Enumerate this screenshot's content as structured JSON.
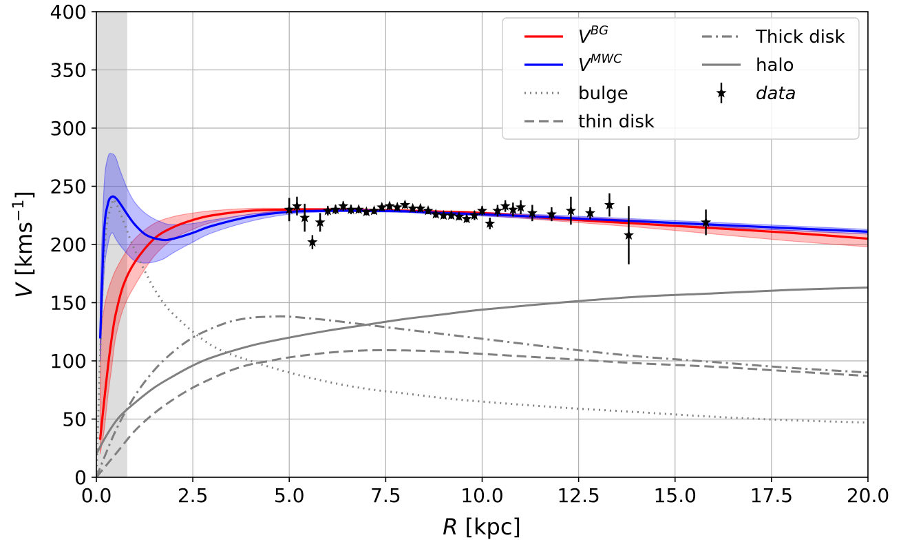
{
  "chart_data": {
    "type": "line",
    "xlabel": "R [kpc]",
    "ylabel": "V [kms−1]",
    "xlim": [
      0,
      20
    ],
    "ylim": [
      0,
      400
    ],
    "xticks": [
      "0.0",
      "2.5",
      "5.0",
      "7.5",
      "10.0",
      "12.5",
      "15.0",
      "17.5",
      "20.0"
    ],
    "yticks": [
      "0",
      "50",
      "100",
      "150",
      "200",
      "250",
      "300",
      "350",
      "400"
    ],
    "grid": true,
    "legend_position": "top-right",
    "shaded_region": {
      "x0": 0,
      "x1": 0.8,
      "color": "#dddddd"
    },
    "series": [
      {
        "key": "vbg",
        "name": "V",
        "name_sup": "BG",
        "color": "#ff0000",
        "style": "solid",
        "x": [
          0.1,
          0.2,
          0.3,
          0.4,
          0.5,
          0.7,
          1.0,
          1.5,
          2.0,
          2.5,
          3.0,
          4.0,
          5.0,
          6.0,
          7.0,
          8.0,
          9.0,
          10.0,
          12.0,
          14.0,
          16.0,
          18.0,
          20.0
        ],
        "y": [
          33,
          65,
          95,
          120,
          140,
          165,
          185,
          205,
          215,
          221,
          225,
          229,
          230,
          230,
          229.5,
          229,
          228,
          227,
          222,
          218,
          214,
          210,
          205
        ],
        "band_upper": [
          120,
          145,
          160,
          170,
          178,
          190,
          205,
          218,
          224,
          227,
          229,
          231,
          231,
          231,
          230.5,
          230,
          229,
          228,
          224,
          221,
          216,
          212,
          209
        ],
        "band_lower": [
          20,
          40,
          70,
          95,
          120,
          145,
          165,
          190,
          205,
          213,
          219,
          226,
          228,
          228.5,
          228.5,
          228,
          226,
          225,
          220,
          215,
          209,
          203,
          198
        ]
      },
      {
        "key": "vmwc",
        "name": "V",
        "name_sup": "MWC",
        "color": "#0000ff",
        "style": "solid",
        "x": [
          0.1,
          0.2,
          0.3,
          0.4,
          0.5,
          0.6,
          0.8,
          1.0,
          1.3,
          1.7,
          2.0,
          2.5,
          3.0,
          4.0,
          5.0,
          6.0,
          7.0,
          8.0,
          9.0,
          10.0,
          12.0,
          14.0,
          16.0,
          18.0,
          20.0
        ],
        "y": [
          120,
          210,
          235,
          241,
          240,
          236,
          226,
          217,
          208,
          204,
          205,
          210,
          216,
          224,
          228,
          229,
          229,
          228.5,
          227,
          226,
          223,
          220,
          217,
          214,
          211
        ],
        "band_upper": [
          160,
          250,
          275,
          278,
          275,
          265,
          248,
          236,
          226,
          219,
          217,
          218,
          221,
          226,
          229.5,
          230,
          230,
          229.5,
          228.5,
          227.5,
          225,
          222,
          219,
          216,
          213
        ],
        "band_lower": [
          100,
          175,
          200,
          210,
          205,
          200,
          192,
          186,
          184,
          187,
          193,
          202,
          210,
          220,
          226,
          228,
          228,
          227.5,
          225.5,
          224.5,
          221,
          218,
          215,
          212,
          209
        ]
      },
      {
        "key": "bulge",
        "name": "bulge",
        "color": "#808080",
        "style": "dotted",
        "x": [
          0.0,
          0.2,
          0.4,
          0.5,
          0.7,
          1.0,
          1.5,
          2.0,
          3.0,
          4.0,
          5.0,
          6.0,
          7.0,
          8.0,
          9.0,
          10.0,
          12.0,
          14.0,
          16.0,
          18.0,
          20.0
        ],
        "y": [
          0,
          190,
          234,
          236,
          220,
          195,
          162,
          140,
          113,
          100,
          90,
          82,
          76,
          72,
          68,
          65,
          60,
          56,
          52,
          49,
          47
        ]
      },
      {
        "key": "thin",
        "name": "thin disk",
        "color": "#808080",
        "style": "dashed",
        "x": [
          0.0,
          0.5,
          1.0,
          1.5,
          2.0,
          2.5,
          3.0,
          3.5,
          4.0,
          4.5,
          5.0,
          6.0,
          7.0,
          8.0,
          9.0,
          10.0,
          12.0,
          14.0,
          16.0,
          18.0,
          20.0
        ],
        "y": [
          0,
          20,
          40,
          55,
          67,
          77,
          85,
          92,
          97,
          100,
          103,
          107,
          109,
          109,
          108,
          106,
          102,
          98,
          95,
          91,
          87
        ]
      },
      {
        "key": "thick",
        "name": "Thick disk",
        "color": "#808080",
        "style": "dashdot",
        "x": [
          0.0,
          0.5,
          1.0,
          1.5,
          2.0,
          2.5,
          3.0,
          3.5,
          4.0,
          4.5,
          5.0,
          6.0,
          7.0,
          8.0,
          9.0,
          10.0,
          12.0,
          14.0,
          16.0,
          18.0,
          20.0
        ],
        "y": [
          0,
          40,
          70,
          92,
          108,
          120,
          128,
          134,
          137,
          138,
          138,
          135,
          131,
          127,
          123,
          119,
          111,
          104,
          99,
          94,
          90
        ]
      },
      {
        "key": "halo",
        "name": "halo",
        "color": "#808080",
        "style": "solid",
        "x": [
          0.0,
          0.3,
          0.6,
          1.0,
          1.5,
          2.0,
          2.5,
          3.0,
          4.0,
          5.0,
          6.0,
          7.0,
          8.0,
          9.0,
          10.0,
          12.0,
          14.0,
          16.0,
          18.0,
          20.0
        ],
        "y": [
          20,
          38,
          52,
          64,
          77,
          87,
          96,
          103,
          113,
          120,
          126,
          131,
          136,
          140,
          144,
          150,
          155,
          158,
          161,
          163
        ]
      }
    ],
    "data_points": {
      "name": "data",
      "color": "#000000",
      "points": [
        [
          5.0,
          230,
          10
        ],
        [
          5.2,
          233,
          8
        ],
        [
          5.4,
          223,
          12
        ],
        [
          5.6,
          202,
          6
        ],
        [
          5.8,
          219,
          8
        ],
        [
          6.0,
          229,
          4
        ],
        [
          6.2,
          230,
          4
        ],
        [
          6.4,
          233,
          4
        ],
        [
          6.6,
          230,
          4
        ],
        [
          6.8,
          230,
          3
        ],
        [
          7.0,
          228,
          3
        ],
        [
          7.2,
          229,
          3
        ],
        [
          7.4,
          232,
          3
        ],
        [
          7.6,
          233,
          3
        ],
        [
          7.8,
          232,
          3
        ],
        [
          8.0,
          234,
          3
        ],
        [
          8.2,
          231,
          3
        ],
        [
          8.4,
          231,
          3
        ],
        [
          8.6,
          229,
          3
        ],
        [
          8.8,
          226,
          3
        ],
        [
          9.0,
          225,
          3
        ],
        [
          9.2,
          225,
          3
        ],
        [
          9.4,
          224,
          3
        ],
        [
          9.6,
          222,
          3
        ],
        [
          9.8,
          225,
          4
        ],
        [
          10.0,
          229,
          4
        ],
        [
          10.2,
          218,
          5
        ],
        [
          10.4,
          229,
          5
        ],
        [
          10.6,
          233,
          5
        ],
        [
          10.8,
          230,
          6
        ],
        [
          11.0,
          232,
          6
        ],
        [
          11.3,
          227,
          7
        ],
        [
          11.8,
          226,
          6
        ],
        [
          12.3,
          229,
          12
        ],
        [
          12.8,
          227,
          5
        ],
        [
          13.3,
          234,
          10
        ],
        [
          13.8,
          208,
          25
        ],
        [
          15.8,
          219,
          11
        ]
      ]
    }
  }
}
